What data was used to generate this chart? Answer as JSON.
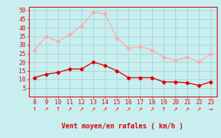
{
  "hours": [
    8,
    9,
    10,
    11,
    12,
    13,
    14,
    15,
    16,
    17,
    18,
    19,
    20,
    21,
    22,
    23
  ],
  "wind_avg": [
    11,
    13,
    14,
    16,
    16,
    20,
    18,
    15,
    11,
    11,
    11,
    8.5,
    8.5,
    8,
    6.5,
    8.5
  ],
  "wind_gust": [
    27,
    35,
    32,
    36,
    41,
    49,
    48,
    34,
    28,
    29,
    27,
    23,
    21,
    23,
    20,
    25
  ],
  "avg_color": "#dd0000",
  "gust_color": "#ffaaaa",
  "bg_color": "#c8eef0",
  "grid_color": "#99cccc",
  "xlabel": "Vent moyen/en rafales ( km/h )",
  "xlabel_color": "#dd0000",
  "tick_color": "#dd0000",
  "ylim": [
    0,
    52
  ],
  "yticks": [
    5,
    10,
    15,
    20,
    25,
    30,
    35,
    40,
    45,
    50
  ],
  "marker": "D",
  "markersize": 2.5,
  "linewidth": 1.0,
  "arrow_chars": [
    "↑",
    "↗",
    "↑",
    "↗",
    "↗",
    "↗",
    "↗",
    "↗",
    "↗",
    "↗",
    "↗",
    "↑",
    "↗",
    "↗",
    "↗",
    "→"
  ]
}
